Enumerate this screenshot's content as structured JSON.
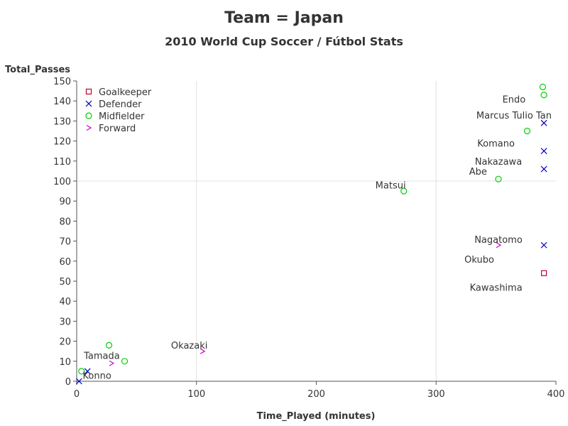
{
  "chart_data": {
    "type": "scatter",
    "title": "Team = Japan",
    "subtitle": "2010 World Cup Soccer / Fútbol Stats",
    "xlabel": "Time_Played (minutes)",
    "ylabel": "Total_Passes",
    "xlim": [
      0,
      400
    ],
    "ylim": [
      0,
      150
    ],
    "xticks": [
      0,
      100,
      200,
      300,
      400
    ],
    "yticks": [
      0,
      10,
      20,
      30,
      40,
      50,
      60,
      70,
      80,
      90,
      100,
      110,
      120,
      130,
      140,
      150
    ],
    "grid": "reference lines at x=100, x=300, y=100",
    "reference_lines": {
      "x": [
        100,
        300
      ],
      "y": [
        100
      ]
    },
    "legend_position": "top-left",
    "series": [
      {
        "name": "Goalkeeper",
        "marker": "square",
        "color": "#c00030",
        "points": [
          {
            "x": 390,
            "y": 54
          }
        ]
      },
      {
        "name": "Defender",
        "marker": "x",
        "color": "#0000c0",
        "points": [
          {
            "x": 390,
            "y": 129
          },
          {
            "x": 390,
            "y": 115
          },
          {
            "x": 390,
            "y": 106
          },
          {
            "x": 390,
            "y": 68
          },
          {
            "x": 2,
            "y": 0
          },
          {
            "x": 9,
            "y": 5
          }
        ]
      },
      {
        "name": "Midfielder",
        "marker": "circle",
        "color": "#00d000",
        "points": [
          {
            "x": 389,
            "y": 147
          },
          {
            "x": 390,
            "y": 143
          },
          {
            "x": 376,
            "y": 125
          },
          {
            "x": 352,
            "y": 101
          },
          {
            "x": 273,
            "y": 95
          },
          {
            "x": 27,
            "y": 18
          },
          {
            "x": 40,
            "y": 10
          },
          {
            "x": 4,
            "y": 5
          }
        ]
      },
      {
        "name": "Forward",
        "marker": "chevron",
        "color": "#d000d0",
        "points": [
          {
            "x": 352,
            "y": 68
          },
          {
            "x": 105,
            "y": 15
          },
          {
            "x": 29,
            "y": 9
          }
        ]
      }
    ],
    "annotations": [
      {
        "text": "Endo",
        "x": 365,
        "y": 141
      },
      {
        "text": "Marcus Tulio Tan",
        "x": 365,
        "y": 133
      },
      {
        "text": "Komano",
        "x": 350,
        "y": 119
      },
      {
        "text": "Nakazawa",
        "x": 352,
        "y": 110
      },
      {
        "text": "Abe",
        "x": 335,
        "y": 105
      },
      {
        "text": "Matsui",
        "x": 262,
        "y": 98
      },
      {
        "text": "Nagatomo",
        "x": 352,
        "y": 71
      },
      {
        "text": "Okubo",
        "x": 336,
        "y": 61
      },
      {
        "text": "Kawashima",
        "x": 350,
        "y": 47
      },
      {
        "text": "Okazaki",
        "x": 94,
        "y": 18
      },
      {
        "text": "Tamada",
        "x": 21,
        "y": 13
      },
      {
        "text": "Konno",
        "x": 17,
        "y": 3
      }
    ]
  }
}
